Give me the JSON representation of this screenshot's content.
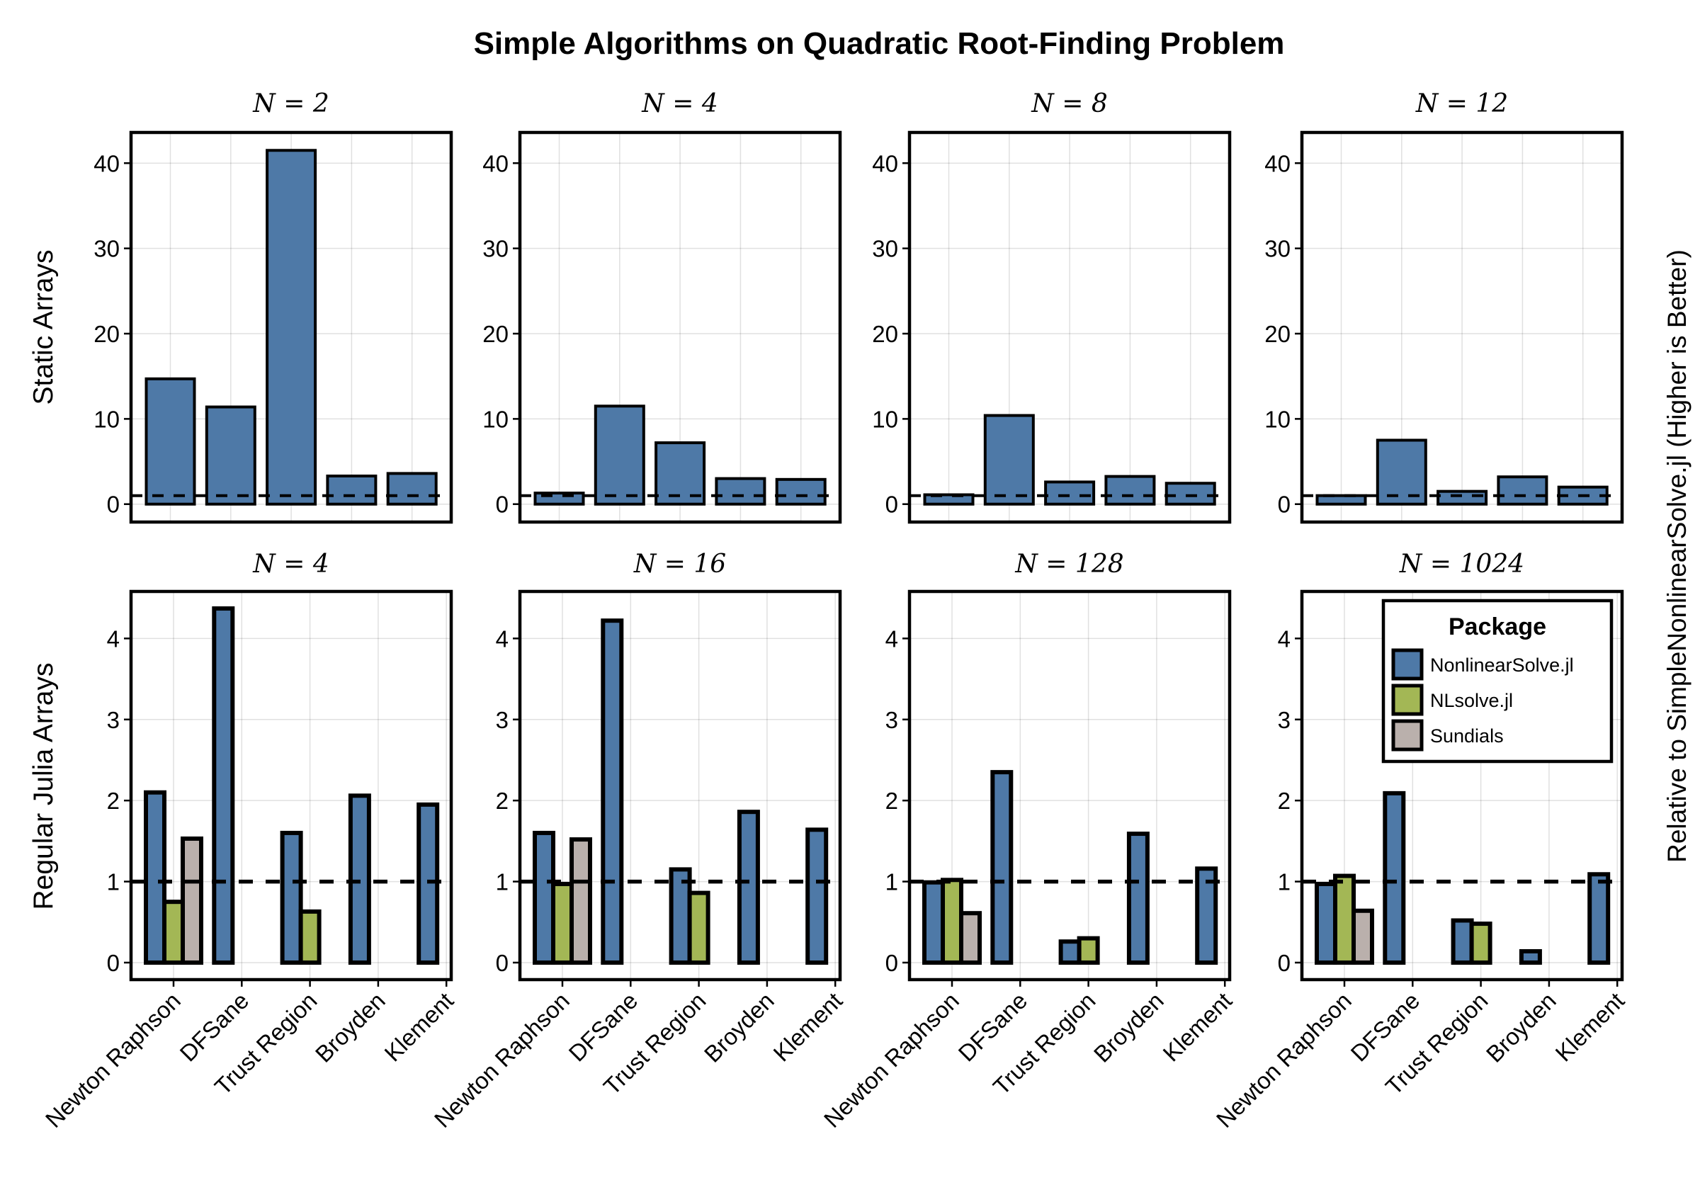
{
  "chart_data": {
    "type": "bar",
    "title": "Simple Algorithms on Quadratic Root-Finding Problem",
    "side_label": "Relative to SimpleNonlinearSolve.jl (Higher is Better)",
    "categories": [
      "Newton Raphson",
      "DFSane",
      "Trust Region",
      "Broyden",
      "Klement"
    ],
    "reference_line": 1,
    "grid": true,
    "colors": {
      "NonlinearSolve.jl": "#4e79a7",
      "NLsolve.jl": "#a3b755",
      "Sundials": "#bab0ac"
    },
    "legend": {
      "title": "Package",
      "placement": "top-right of bottom-right panel",
      "entries": [
        "NonlinearSolve.jl",
        "NLsolve.jl",
        "Sundials"
      ]
    },
    "rows": [
      {
        "label": "Static Arrays",
        "ylim": [
          -2.1,
          43.6
        ],
        "yticks": [
          0,
          10,
          20,
          30,
          40
        ],
        "panels": [
          {
            "title": "N = 2",
            "series": [
              {
                "name": "NonlinearSolve.jl",
                "values": [
                  14.7,
                  11.4,
                  41.5,
                  3.3,
                  3.6
                ]
              }
            ]
          },
          {
            "title": "N = 4",
            "series": [
              {
                "name": "NonlinearSolve.jl",
                "values": [
                  1.3,
                  11.5,
                  7.2,
                  3.0,
                  2.9
                ]
              }
            ]
          },
          {
            "title": "N = 8",
            "series": [
              {
                "name": "NonlinearSolve.jl",
                "values": [
                  1.1,
                  10.4,
                  2.6,
                  3.25,
                  2.45
                ]
              }
            ]
          },
          {
            "title": "N = 12",
            "series": [
              {
                "name": "NonlinearSolve.jl",
                "values": [
                  1.0,
                  7.5,
                  1.5,
                  3.2,
                  2.0
                ]
              }
            ]
          }
        ]
      },
      {
        "label": "Regular Julia Arrays",
        "ylim": [
          -0.21,
          4.58
        ],
        "yticks": [
          0,
          1,
          2,
          3,
          4
        ],
        "panels": [
          {
            "title": "N = 4",
            "series": [
              {
                "name": "NonlinearSolve.jl",
                "values": [
                  2.1,
                  4.37,
                  1.6,
                  2.06,
                  1.95
                ]
              },
              {
                "name": "NLsolve.jl",
                "values": [
                  0.75,
                  null,
                  0.63,
                  null,
                  null
                ]
              },
              {
                "name": "Sundials",
                "values": [
                  1.53,
                  null,
                  null,
                  null,
                  null
                ]
              }
            ]
          },
          {
            "title": "N = 16",
            "series": [
              {
                "name": "NonlinearSolve.jl",
                "values": [
                  1.6,
                  4.22,
                  1.15,
                  1.86,
                  1.64
                ]
              },
              {
                "name": "NLsolve.jl",
                "values": [
                  0.97,
                  null,
                  0.86,
                  null,
                  null
                ]
              },
              {
                "name": "Sundials",
                "values": [
                  1.52,
                  null,
                  null,
                  null,
                  null
                ]
              }
            ]
          },
          {
            "title": "N = 128",
            "series": [
              {
                "name": "NonlinearSolve.jl",
                "values": [
                  0.99,
                  2.35,
                  0.26,
                  1.59,
                  1.16
                ]
              },
              {
                "name": "NLsolve.jl",
                "values": [
                  1.02,
                  null,
                  0.3,
                  null,
                  null
                ]
              },
              {
                "name": "Sundials",
                "values": [
                  0.61,
                  null,
                  null,
                  null,
                  null
                ]
              }
            ]
          },
          {
            "title": "N = 1024",
            "series": [
              {
                "name": "NonlinearSolve.jl",
                "values": [
                  0.97,
                  2.09,
                  0.52,
                  0.14,
                  1.09
                ]
              },
              {
                "name": "NLsolve.jl",
                "values": [
                  1.07,
                  null,
                  0.48,
                  null,
                  null
                ]
              },
              {
                "name": "Sundials",
                "values": [
                  0.64,
                  null,
                  null,
                  null,
                  null
                ]
              }
            ]
          }
        ]
      }
    ]
  }
}
